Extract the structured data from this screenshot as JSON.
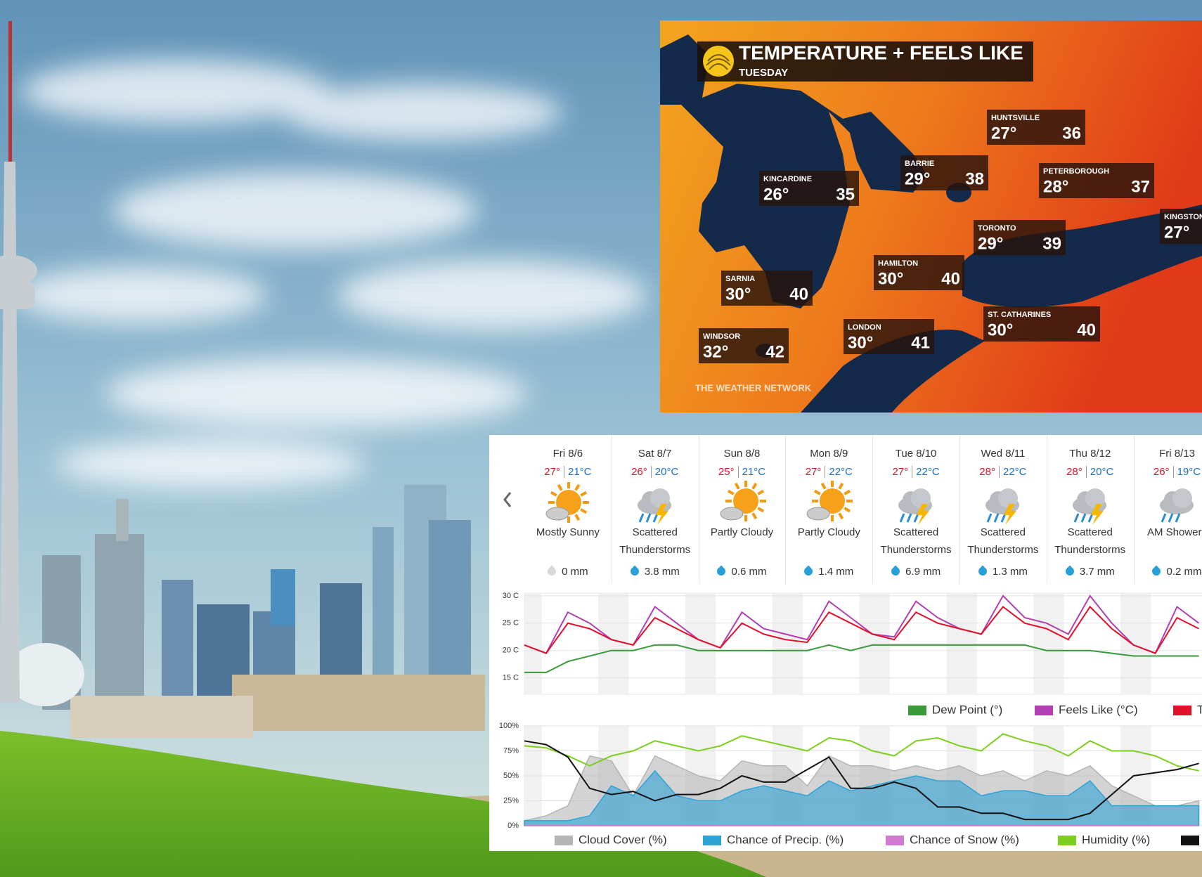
{
  "map": {
    "title": "TEMPERATURE + FEELS LIKE",
    "subtitle": "TUESDAY",
    "brand": "THE WEATHER NETWORK",
    "cities": [
      {
        "name": "HUNTSVILLE",
        "temp": "27°",
        "feels_like": "36"
      },
      {
        "name": "BARRIE",
        "temp": "29°",
        "feels_like": "38"
      },
      {
        "name": "PETERBOROUGH",
        "temp": "28°",
        "feels_like": "37"
      },
      {
        "name": "KINCARDINE",
        "temp": "26°",
        "feels_like": "35"
      },
      {
        "name": "KINGSTON",
        "temp": "27°"
      },
      {
        "name": "TORONTO",
        "temp": "29°",
        "feels_like": "39"
      },
      {
        "name": "HAMILTON",
        "temp": "30°",
        "feels_like": "40"
      },
      {
        "name": "SARNIA",
        "temp": "30°",
        "feels_like": "40"
      },
      {
        "name": "ST. CATHARINES",
        "temp": "30°",
        "feels_like": "40"
      },
      {
        "name": "LONDON",
        "temp": "30°",
        "feels_like": "41"
      },
      {
        "name": "WINDSOR",
        "temp": "32°",
        "feels_like": "42"
      }
    ]
  },
  "forecast": {
    "days": [
      {
        "date": "Fri 8/6",
        "high": "27°",
        "low": "21°C",
        "condition": "Mostly Sunny",
        "precip": "0 mm"
      },
      {
        "date": "Sat 8/7",
        "high": "26°",
        "low": "20°C",
        "condition": "Scattered Thunderstorms",
        "precip": "3.8 mm"
      },
      {
        "date": "Sun 8/8",
        "high": "25°",
        "low": "21°C",
        "condition": "Partly Cloudy",
        "precip": "0.6 mm"
      },
      {
        "date": "Mon 8/9",
        "high": "27°",
        "low": "22°C",
        "condition": "Partly Cloudy",
        "precip": "1.4 mm"
      },
      {
        "date": "Tue 8/10",
        "high": "27°",
        "low": "22°C",
        "condition": "Scattered Thunderstorms",
        "precip": "6.9 mm"
      },
      {
        "date": "Wed 8/11",
        "high": "28°",
        "low": "22°C",
        "condition": "Scattered Thunderstorms",
        "precip": "1.3 mm"
      },
      {
        "date": "Thu 8/12",
        "high": "28°",
        "low": "20°C",
        "condition": "Scattered Thunderstorms",
        "precip": "3.7 mm"
      },
      {
        "date": "Fri 8/13",
        "high": "26°",
        "low": "19°C",
        "condition": "AM Showers",
        "precip": "0.2 mm"
      }
    ]
  },
  "chart_data": [
    {
      "type": "line",
      "x": [
        0,
        6,
        12,
        18,
        24,
        30,
        36,
        42,
        48,
        54,
        60,
        66,
        72,
        78,
        84,
        90,
        96,
        102,
        108,
        114,
        120,
        126,
        132,
        138,
        144,
        150,
        156,
        162,
        168,
        174,
        180,
        186
      ],
      "xlim": [
        0,
        192
      ],
      "ylim": [
        12,
        30.5
      ],
      "yticks": [
        {
          "value": 30,
          "label": "30 C"
        },
        {
          "value": 25,
          "label": "25 C"
        },
        {
          "value": 20,
          "label": "20 C"
        },
        {
          "value": 15,
          "label": "15 C"
        }
      ],
      "grid": true,
      "series": [
        {
          "name": "Dew Point (°)",
          "color": "#3a9a3a",
          "values": [
            16,
            16,
            18,
            19,
            20,
            20,
            21,
            21,
            20,
            20,
            20,
            20,
            20,
            20,
            21,
            20,
            21,
            21,
            21,
            21,
            21,
            21,
            21,
            21,
            20,
            20,
            20,
            19.5,
            19,
            19,
            19,
            19
          ]
        },
        {
          "name": "Feels Like (°C)",
          "color": "#b03fb3",
          "values": [
            21,
            19.5,
            27,
            25,
            22,
            21,
            28,
            25,
            22,
            20.5,
            27,
            24,
            23,
            22,
            29,
            26,
            23,
            22.5,
            29,
            26,
            24,
            23,
            30,
            26,
            25,
            23,
            30,
            25,
            21,
            19.5,
            28,
            25
          ]
        },
        {
          "name": "Temperature (°C)",
          "color": "#e0102a",
          "values": [
            21,
            19.5,
            25,
            24,
            22,
            21,
            26,
            24,
            22,
            20.5,
            25,
            23,
            22,
            21.5,
            27,
            25,
            23,
            22,
            27,
            25,
            24,
            23,
            28,
            25,
            24,
            22,
            28,
            24,
            21,
            19.5,
            26,
            24
          ]
        }
      ]
    },
    {
      "type": "area",
      "x": [
        0,
        6,
        12,
        18,
        24,
        30,
        36,
        42,
        48,
        54,
        60,
        66,
        72,
        78,
        84,
        90,
        96,
        102,
        108,
        114,
        120,
        126,
        132,
        138,
        144,
        150,
        156,
        162,
        168,
        174,
        180,
        186
      ],
      "xlim": [
        0,
        192
      ],
      "ylim": [
        0,
        100
      ],
      "y2lim": [
        1006,
        1022
      ],
      "yticks": [
        {
          "value": 100,
          "label": "100%"
        },
        {
          "value": 75,
          "label": "75%"
        },
        {
          "value": 50,
          "label": "50%"
        },
        {
          "value": 25,
          "label": "25%"
        },
        {
          "value": 0,
          "label": "0%"
        }
      ],
      "grid": true,
      "series": [
        {
          "name": "Cloud Cover (%)",
          "color": "#b5b5b5",
          "fill": true,
          "values": [
            5,
            10,
            20,
            70,
            65,
            30,
            70,
            60,
            50,
            45,
            65,
            60,
            60,
            40,
            70,
            60,
            60,
            55,
            60,
            55,
            60,
            50,
            55,
            45,
            55,
            50,
            60,
            40,
            30,
            20,
            20,
            25
          ]
        },
        {
          "name": "Chance of Precip. (%)",
          "color": "#2ea3d6",
          "fill": true,
          "values": [
            5,
            5,
            5,
            10,
            40,
            30,
            55,
            30,
            25,
            25,
            35,
            40,
            35,
            30,
            45,
            35,
            40,
            45,
            50,
            45,
            45,
            30,
            35,
            35,
            30,
            30,
            45,
            20,
            20,
            20,
            20,
            20
          ]
        },
        {
          "name": "Chance of Snow (%)",
          "color": "#d07ad0",
          "values": [
            0,
            0,
            0,
            0,
            0,
            0,
            0,
            0,
            0,
            0,
            0,
            0,
            0,
            0,
            0,
            0,
            0,
            0,
            0,
            0,
            0,
            0,
            0,
            0,
            0,
            0,
            0,
            0,
            0,
            0,
            0,
            0
          ]
        },
        {
          "name": "Humidity (%)",
          "color": "#7ccf1c",
          "values": [
            80,
            78,
            70,
            60,
            70,
            75,
            85,
            80,
            75,
            80,
            90,
            85,
            80,
            75,
            88,
            85,
            75,
            70,
            85,
            88,
            80,
            75,
            92,
            85,
            80,
            70,
            85,
            75,
            75,
            70,
            60,
            55
          ]
        },
        {
          "color": "#111111",
          "axis": "y2",
          "values": [
            1019.6,
            1019,
            1017,
            1012,
            1011,
            1011.5,
            1010,
            1011,
            1011,
            1012,
            1014,
            1013,
            1013,
            1015,
            1017,
            1012,
            1012,
            1013,
            1012,
            1009,
            1009,
            1008,
            1008,
            1007,
            1007,
            1007,
            1008,
            1011,
            1014,
            1014.5,
            1015,
            1016
          ]
        }
      ]
    }
  ]
}
